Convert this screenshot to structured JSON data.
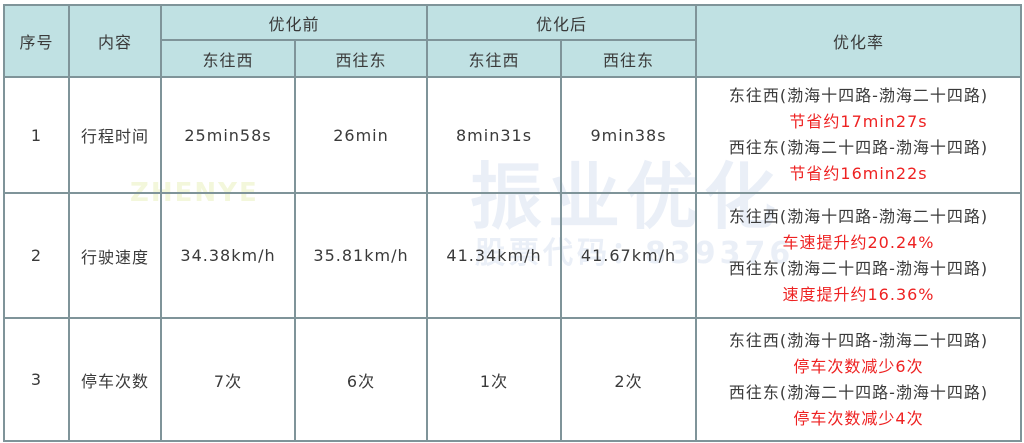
{
  "header": {
    "seq": "序号",
    "content": "内容",
    "before": "优化前",
    "after": "优化后",
    "rate": "优化率",
    "dir_ew": "东往西",
    "dir_we": "西往东"
  },
  "rows": [
    {
      "seq": "1",
      "item": "行程时间",
      "before_ew": "25min58s",
      "before_we": "26min",
      "after_ew": "8min31s",
      "after_we": "9min38s",
      "rate": [
        {
          "route": "东往西(渤海十四路-渤海二十四路)",
          "result": "节省约17min27s"
        },
        {
          "route": "西往东(渤海二十四路-渤海十四路)",
          "result": "节省约16min22s"
        }
      ]
    },
    {
      "seq": "2",
      "item": "行驶速度",
      "before_ew": "34.38km/h",
      "before_we": "35.81km/h",
      "after_ew": "41.34km/h",
      "after_we": "41.67km/h",
      "rate": [
        {
          "route": "东往西(渤海十四路-渤海二十四路)",
          "result": "车速提升约20.24%"
        },
        {
          "route": "西往东(渤海二十四路-渤海十四路)",
          "result": "速度提升约16.36%"
        }
      ]
    },
    {
      "seq": "3",
      "item": "停车次数",
      "before_ew": "7次",
      "before_we": "6次",
      "after_ew": "1次",
      "after_we": "2次",
      "rate": [
        {
          "route": "东往西(渤海十四路-渤海二十四路)",
          "result": "停车次数减少6次"
        },
        {
          "route": "西往东(渤海二十四路-渤海十四路)",
          "result": "停车次数减少4次"
        }
      ]
    }
  ],
  "watermark": {
    "brand": "振业优化",
    "stock": "股票代码：839376",
    "logo": "ZHENYE"
  },
  "colors": {
    "header_bg": "#c0e1e3",
    "border": "#7f9499",
    "highlight": "#ee2222"
  }
}
